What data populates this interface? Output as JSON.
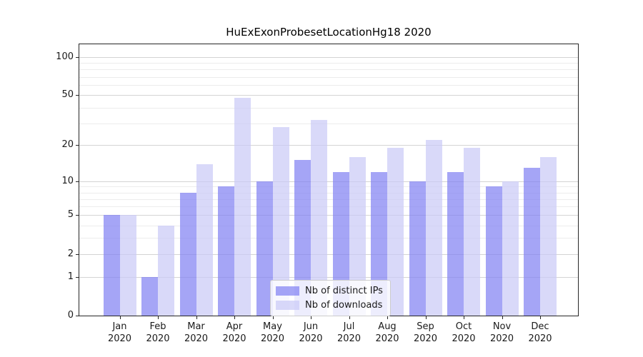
{
  "chart_data": {
    "type": "bar",
    "title": "HuExExonProbesetLocationHg18 2020",
    "categories": [
      "Jan",
      "Feb",
      "Mar",
      "Apr",
      "May",
      "Jun",
      "Jul",
      "Aug",
      "Sep",
      "Oct",
      "Nov",
      "Dec"
    ],
    "category_year": "2020",
    "series": [
      {
        "name": "Nb of distinct IPs",
        "color": "rgba(130,130,242,0.72)",
        "values": [
          5,
          1,
          8,
          9,
          10,
          15,
          12,
          12,
          10,
          12,
          9,
          13
        ]
      },
      {
        "name": "Nb of downloads",
        "color": "rgba(203,203,246,0.72)",
        "values": [
          5,
          4,
          14,
          48,
          28,
          32,
          16,
          19,
          22,
          19,
          10,
          16
        ]
      }
    ],
    "yscale": "log1p",
    "ylim": [
      0,
      127
    ],
    "y_ticks": [
      0,
      1,
      2,
      5,
      10,
      20,
      50,
      100
    ],
    "y_tick_labels": [
      "0",
      "1",
      "2",
      "5",
      "10",
      "20",
      "50",
      "100"
    ],
    "y_minor_ticks": [
      3,
      4,
      6,
      7,
      8,
      9,
      30,
      40,
      60,
      70,
      80,
      90
    ],
    "grid": "horizontal",
    "legend_position": "lower center",
    "colors": {
      "major_grid": "#d4d4d4",
      "minor_grid": "#ececec",
      "axis": "#262626",
      "text": "#1a1a1a",
      "background": "#ffffff"
    }
  }
}
